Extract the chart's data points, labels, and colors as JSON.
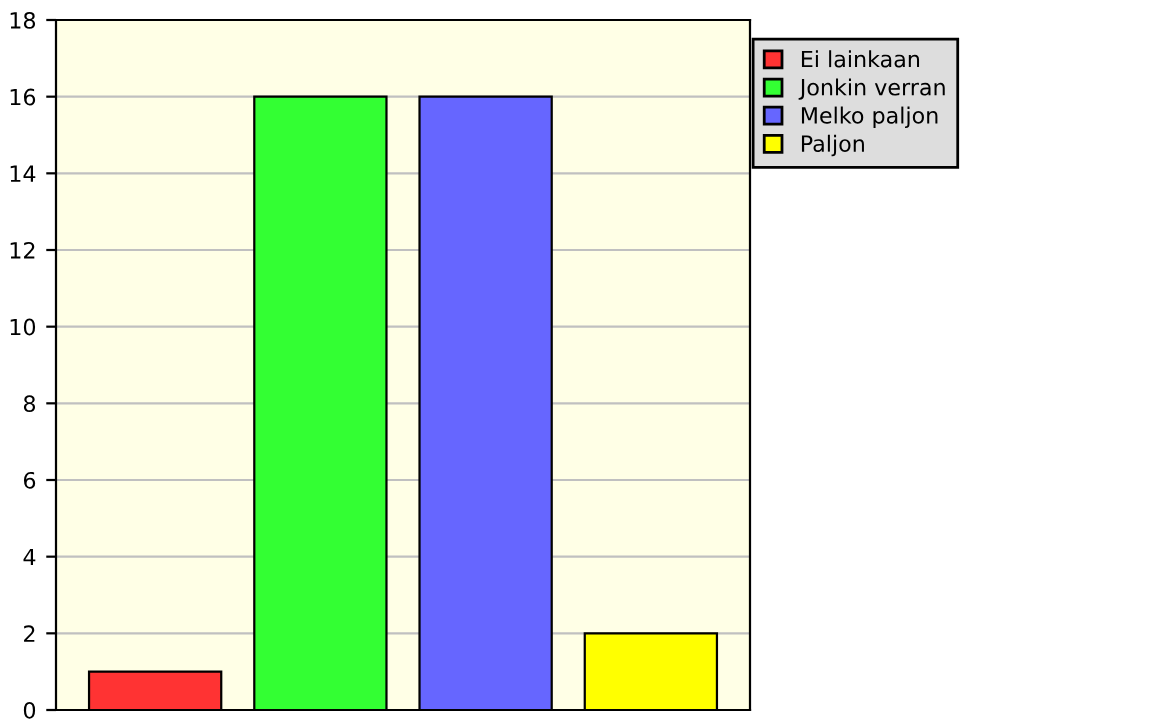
{
  "chart_data": {
    "type": "bar",
    "categories": [
      null,
      null,
      null,
      null
    ],
    "series": [
      {
        "name": "Ei lainkaan",
        "color": "#ff3333",
        "values": [
          1,
          null,
          null,
          null
        ]
      },
      {
        "name": "Jonkin verran",
        "color": "#33ff33",
        "values": [
          null,
          16,
          null,
          null
        ]
      },
      {
        "name": "Melko paljon",
        "color": "#6666ff",
        "values": [
          null,
          null,
          16,
          null
        ]
      },
      {
        "name": "Paljon",
        "color": "#ffff00",
        "values": [
          null,
          null,
          null,
          2
        ]
      }
    ],
    "ylim": [
      0,
      18
    ],
    "yticks": [
      0,
      2,
      4,
      6,
      8,
      10,
      12,
      14,
      16,
      18
    ],
    "grid": "y",
    "legend": "top right"
  }
}
